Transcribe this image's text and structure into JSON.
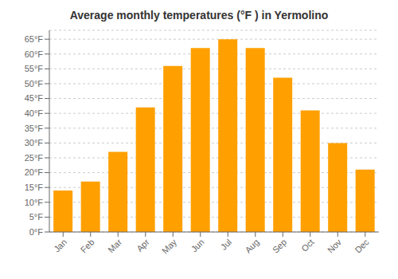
{
  "chart_data": {
    "type": "bar",
    "title": "Average monthly temperatures (°F ) in Yermolino",
    "categories": [
      "Jan",
      "Feb",
      "Mar",
      "Apr",
      "May",
      "Jun",
      "Jul",
      "Aug",
      "Sep",
      "Oct",
      "Nov",
      "Dec"
    ],
    "values": [
      14,
      17,
      27,
      42,
      56,
      62,
      65,
      62,
      52,
      41,
      30,
      21
    ],
    "color": "#FFA000",
    "ylim": [
      0,
      68
    ],
    "yticks": [
      {
        "value": 0,
        "label": "0°F"
      },
      {
        "value": 5,
        "label": "5°F"
      },
      {
        "value": 10,
        "label": "10°F"
      },
      {
        "value": 15,
        "label": "15°F"
      },
      {
        "value": 20,
        "label": "20°F"
      },
      {
        "value": 25,
        "label": "25°F"
      },
      {
        "value": 30,
        "label": "30°F"
      },
      {
        "value": 35,
        "label": "35°F"
      },
      {
        "value": 40,
        "label": "40°F"
      },
      {
        "value": 45,
        "label": "45°F"
      },
      {
        "value": 50,
        "label": "50°F"
      },
      {
        "value": 55,
        "label": "55°F"
      },
      {
        "value": 60,
        "label": "60°F"
      },
      {
        "value": 65,
        "label": "65°F"
      }
    ],
    "grid": true
  }
}
